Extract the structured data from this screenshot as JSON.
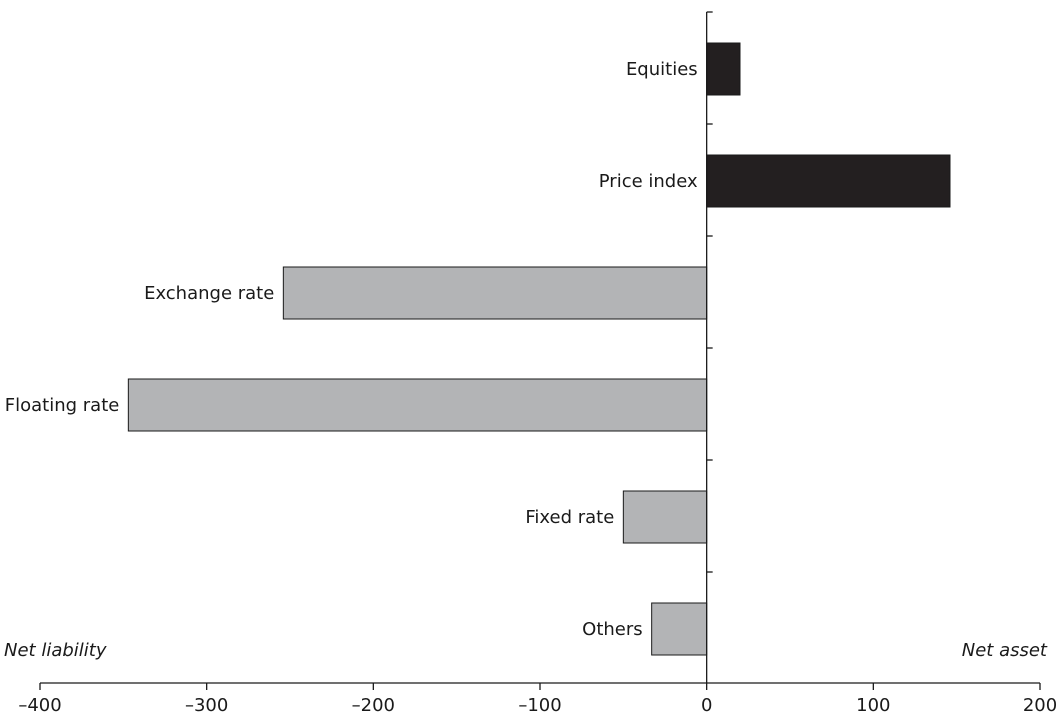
{
  "chart_data": {
    "type": "bar",
    "orientation": "horizontal",
    "categories": [
      "Equities",
      "Price index",
      "Exchange rate",
      "Floating rate",
      "Fixed rate",
      "Others"
    ],
    "values": [
      20,
      146,
      -254,
      -347,
      -50,
      -33
    ],
    "xlim": [
      -400,
      200
    ],
    "x_ticks": [
      -400,
      -300,
      -200,
      -100,
      0,
      100,
      200
    ],
    "x_tick_labels": [
      "–400",
      "–300",
      "–200",
      "–100",
      "0",
      "100",
      "200"
    ],
    "annotations": {
      "left": "Net liability",
      "right": "Net asset"
    },
    "colors": {
      "positive": "#231f20",
      "negative": "#b3b4b6"
    },
    "grid": false,
    "title": "",
    "xlabel": "",
    "ylabel": ""
  }
}
